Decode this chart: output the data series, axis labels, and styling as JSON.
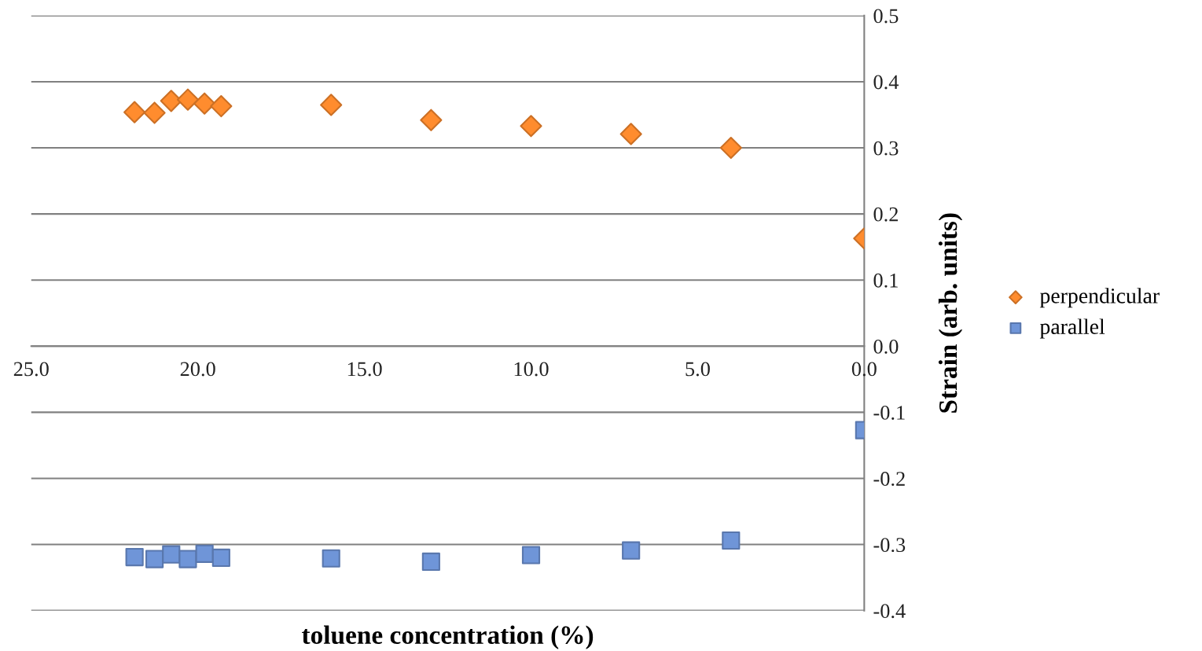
{
  "chart_data": {
    "type": "scatter",
    "xlabel": "toluene concentration (%)",
    "ylabel": "Strain (arb. units)",
    "xlim": [
      25,
      0
    ],
    "xticks": [
      {
        "value": 25,
        "label": "25.0"
      },
      {
        "value": 20,
        "label": "20.0"
      },
      {
        "value": 15,
        "label": "15.0"
      },
      {
        "value": 10,
        "label": "10.0"
      },
      {
        "value": 5,
        "label": "5.0"
      },
      {
        "value": 0,
        "label": "0.0"
      }
    ],
    "ylim": [
      -0.4,
      0.5
    ],
    "yticks": [
      {
        "value": -0.4,
        "label": "-0.4"
      },
      {
        "value": -0.3,
        "label": "-0.3"
      },
      {
        "value": -0.2,
        "label": "-0.2"
      },
      {
        "value": -0.1,
        "label": "-0.1"
      },
      {
        "value": 0,
        "label": "0.0"
      },
      {
        "value": 0.1,
        "label": "0.1"
      },
      {
        "value": 0.2,
        "label": "0.2"
      },
      {
        "value": 0.3,
        "label": "0.3"
      },
      {
        "value": 0.4,
        "label": "0.4"
      },
      {
        "value": 0.5,
        "label": "0.5"
      }
    ],
    "grid": "y",
    "legend": "right",
    "series": [
      {
        "name": "perpendicular",
        "color": "#ff8c2e",
        "marker": "diamond",
        "x": [
          21.9,
          21.3,
          20.8,
          20.3,
          19.8,
          19.3,
          16.0,
          13.0,
          10.0,
          7.0,
          4.0,
          0.0
        ],
        "values": [
          0.354,
          0.353,
          0.371,
          0.373,
          0.367,
          0.363,
          0.365,
          0.342,
          0.333,
          0.321,
          0.3,
          0.163
        ]
      },
      {
        "name": "parallel",
        "color": "#6f95d8",
        "marker": "square",
        "x": [
          21.9,
          21.3,
          20.8,
          20.3,
          19.8,
          19.3,
          16.0,
          13.0,
          10.0,
          7.0,
          4.0,
          0.0
        ],
        "values": [
          -0.319,
          -0.322,
          -0.315,
          -0.322,
          -0.314,
          -0.32,
          -0.321,
          -0.326,
          -0.316,
          -0.309,
          -0.294,
          -0.127
        ]
      }
    ]
  }
}
